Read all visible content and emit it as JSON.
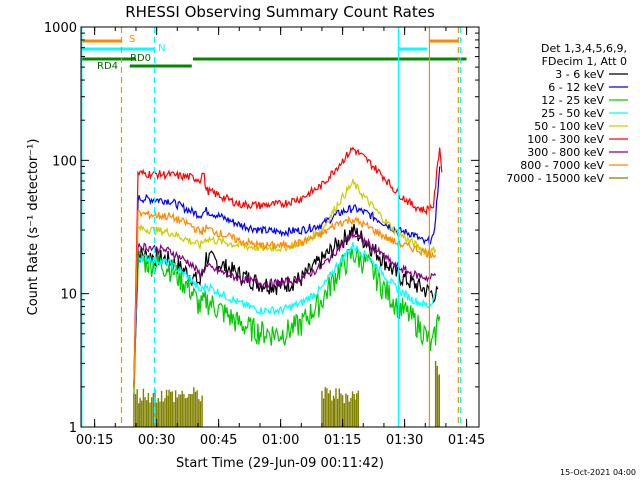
{
  "chart_data": {
    "type": "line",
    "title": "RHESSI Observing Summary Count Rates",
    "xlabel": "Start Time (29-Jun-09 00:11:42)",
    "ylabel": "Count Rate (s⁻¹ detector⁻¹)",
    "yscale": "log",
    "ylim": [
      1,
      1000
    ],
    "xlim_minutes": [
      11.7,
      48.0
    ],
    "x_ticks": [
      {
        "label": "00:15",
        "min": 15
      },
      {
        "label": "00:30",
        "min": 30
      },
      {
        "label": "00:45",
        "min": 45
      },
      {
        "label": "01:00",
        "min": 60
      },
      {
        "label": "01:15",
        "min": 75
      },
      {
        "label": "01:30",
        "min": 90
      },
      {
        "label": "01:45",
        "min": 105
      }
    ],
    "y_ticks": [
      {
        "label": "1",
        "value": 1
      },
      {
        "label": "10",
        "value": 10
      },
      {
        "label": "100",
        "value": 100
      },
      {
        "label": "1000",
        "value": 1000
      }
    ],
    "legend_header": [
      "Det 1,3,4,5,6,9,",
      "FDecim 1, Att 0"
    ],
    "series": [
      {
        "name": "3 - 6 keV",
        "color": "#000000",
        "x": [
          24.5,
          25.5,
          33,
          38,
          40.5,
          42,
          50,
          55,
          60,
          65,
          70,
          74,
          77.5,
          81,
          85,
          88,
          92,
          96.8,
          98
        ],
        "y": [
          2,
          20,
          18,
          14,
          12,
          19,
          14,
          12,
          11.5,
          13,
          18,
          24,
          30,
          24,
          18,
          14,
          12,
          10,
          10
        ]
      },
      {
        "name": "6 - 12 keV",
        "color": "#0000ff",
        "x": [
          24.5,
          25.5,
          33,
          38,
          40.5,
          42,
          50,
          55,
          60,
          65,
          70,
          74,
          77.5,
          81,
          85,
          88,
          92,
          95,
          97,
          98.5
        ],
        "y": [
          2,
          52,
          50,
          42,
          39,
          42,
          33,
          30,
          29,
          30,
          33,
          40,
          44,
          40,
          34,
          30,
          28,
          24,
          26,
          85
        ]
      },
      {
        "name": "12 - 25 keV",
        "color": "#00cc00",
        "x": [
          24.5,
          25.5,
          33,
          38,
          40.5,
          42,
          50,
          55,
          60,
          65,
          70,
          74,
          77.5,
          81,
          85,
          88,
          92,
          95,
          96.5,
          97.5,
          98.5
        ],
        "y": [
          2,
          18,
          16,
          11,
          8,
          9,
          6,
          5.2,
          5,
          6,
          9,
          15,
          20,
          17,
          11,
          8.5,
          6.5,
          5,
          4,
          5,
          8
        ]
      },
      {
        "name": "25 - 50 keV",
        "color": "#00ffff",
        "x": [
          24.5,
          25.5,
          33,
          38,
          40.5,
          42,
          50,
          55,
          60,
          65,
          70,
          74,
          77.5,
          81,
          85,
          88,
          92,
          96,
          97.5
        ],
        "y": [
          2,
          19,
          17,
          13,
          10.5,
          11.5,
          8.5,
          7.5,
          7.5,
          8.5,
          11,
          17,
          23,
          19,
          14,
          11,
          9,
          8,
          10
        ]
      },
      {
        "name": "50 - 100 keV",
        "color": "#cccc00",
        "x": [
          24.5,
          25.5,
          33,
          38,
          40.5,
          42,
          50,
          55,
          60,
          65,
          70,
          74,
          77.5,
          81,
          85,
          88,
          92,
          96,
          97.5
        ],
        "y": [
          2,
          31,
          29,
          25,
          23,
          26,
          23,
          22,
          22,
          24,
          30,
          48,
          68,
          50,
          36,
          29,
          24,
          20,
          22
        ]
      },
      {
        "name": "100 - 300 keV",
        "color": "#ff0000",
        "x": [
          24.5,
          25.5,
          33,
          38,
          40.5,
          41.3,
          42,
          50,
          55,
          60,
          65,
          70,
          74,
          77.5,
          81,
          85,
          88,
          92,
          95,
          97,
          98.5,
          99
        ],
        "y": [
          2,
          80,
          78,
          75,
          72,
          82,
          60,
          47,
          46,
          47,
          52,
          65,
          92,
          123,
          100,
          75,
          58,
          46,
          42,
          46,
          130,
          80
        ]
      },
      {
        "name": "300 - 800 keV",
        "color": "#800080",
        "x": [
          24.5,
          25.5,
          33,
          38,
          40.5,
          42,
          50,
          55,
          60,
          65,
          70,
          74,
          77.5,
          81,
          85,
          88,
          92,
          96,
          97.5
        ],
        "y": [
          2,
          23,
          21,
          17,
          14,
          16,
          13,
          12,
          12,
          13,
          16,
          22,
          28,
          24,
          19,
          16,
          14,
          13,
          14
        ]
      },
      {
        "name": "800 - 7000 keV",
        "color": "#ff8800",
        "x": [
          24.5,
          25.5,
          33,
          38,
          40.5,
          42,
          50,
          55,
          60,
          65,
          70,
          74,
          77.5,
          81,
          85,
          88,
          92,
          96,
          97.5
        ],
        "y": [
          2,
          40,
          38,
          33,
          29,
          31,
          25,
          23,
          23,
          24,
          28,
          34,
          36,
          32,
          27,
          24,
          22,
          20,
          20
        ]
      },
      {
        "name": "7000 - 15000 keV",
        "color": "#808000",
        "x": [
          24.5,
          26,
          33,
          41,
          70,
          73,
          78,
          79,
          80,
          97.5,
          98,
          98.5
        ],
        "y": [
          1,
          2,
          2,
          1,
          1,
          2,
          2,
          1,
          1,
          1,
          3.5,
          1
        ]
      }
    ],
    "flags": {
      "S": {
        "label": "S",
        "color": "#ff8800",
        "segments": [
          [
            11.9,
            21.5
          ],
          [
            95.9,
            103
          ]
        ]
      },
      "N": {
        "label": "N",
        "color": "#00ffff",
        "segments": [
          [
            11.9,
            29.5
          ],
          [
            88.5,
            95.5
          ]
        ]
      },
      "RD0": {
        "label": "RD0",
        "color": "#008800",
        "segments": [
          [
            11.9,
            25
          ],
          [
            38.8,
            105
          ]
        ]
      },
      "RD4": {
        "label": "RD4",
        "color": "#008800",
        "segments": [
          [
            23.5,
            38.5
          ]
        ]
      }
    },
    "vertical_markers": [
      {
        "min": 21.5,
        "color": "#ff8800",
        "style": "dashed"
      },
      {
        "min": 29.5,
        "color": "#00ffff",
        "style": "dashed"
      },
      {
        "min": 96,
        "color": "#ff8800",
        "style": "solid"
      },
      {
        "min": 88.5,
        "color": "#00ffff",
        "style": "solid"
      },
      {
        "min": 103,
        "color": "#ff8800",
        "style": "dashed"
      },
      {
        "min": 103.5,
        "color": "#00ffff",
        "style": "dashed"
      },
      {
        "min": 11.9,
        "color": "#00ffff",
        "style": "solid"
      }
    ],
    "timestamp": "15-Oct-2021 04:00"
  }
}
